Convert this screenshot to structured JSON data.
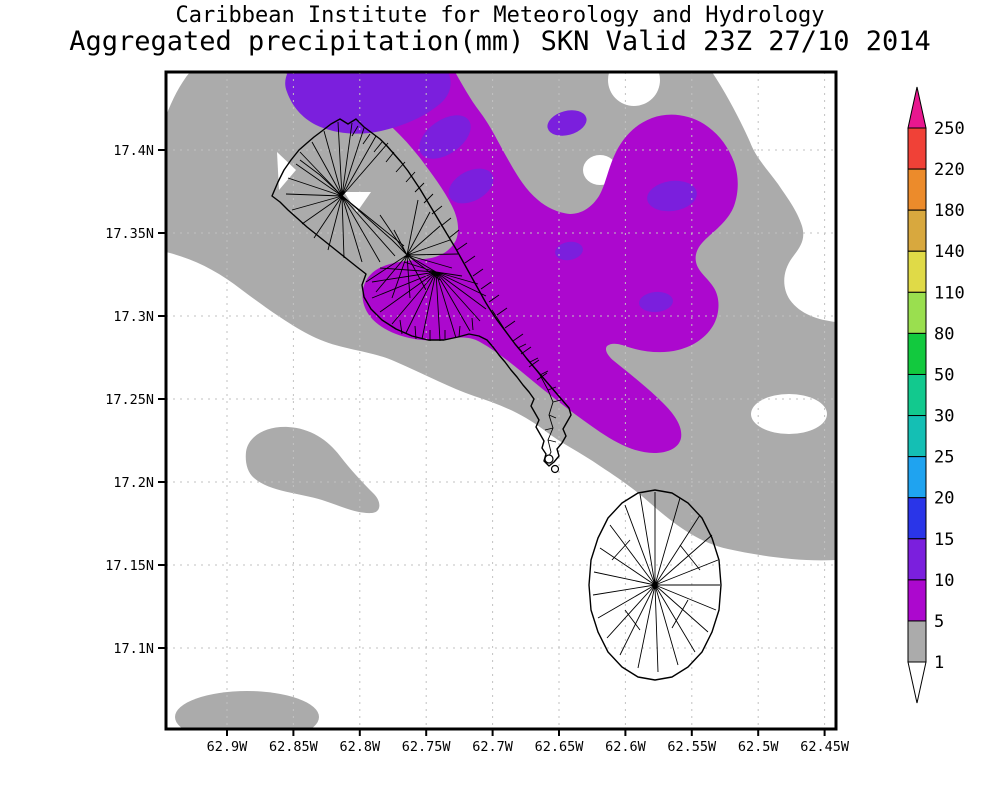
{
  "title": {
    "line1": "Caribbean Institute for Meteorology and Hydrology",
    "line2": "Aggregated precipitation(mm) SKN Valid 23Z 27/10 2014"
  },
  "axes": {
    "y_labels": [
      "17.4N",
      "17.35N",
      "17.3N",
      "17.25N",
      "17.2N",
      "17.15N",
      "17.1N"
    ],
    "x_labels": [
      "62.9W",
      "62.85W",
      "62.8W",
      "62.75W",
      "62.7W",
      "62.65W",
      "62.6W",
      "62.55W",
      "62.5W",
      "62.45W"
    ]
  },
  "colorbar": {
    "values_top_to_bottom": [
      "250",
      "220",
      "180",
      "140",
      "110",
      "80",
      "50",
      "30",
      "25",
      "20",
      "15",
      "10",
      "5",
      "1"
    ],
    "segment_colors_top_to_bottom": [
      "#F04137",
      "#EC8B2B",
      "#D8A83E",
      "#E0DA47",
      "#9ADF4F",
      "#12C93E",
      "#12C98E",
      "#14BFB4",
      "#1FA3F0",
      "#2A35E8",
      "#7B1FDD",
      "#AC08CE",
      "#ABABAB"
    ],
    "above_max_color": "#E8178F",
    "below_min_color": "#FFFFFF"
  },
  "palette": {
    "gray_1_5": "#ABABAB",
    "purple_5_10": "#AC08CE",
    "violet_10_15": "#7B1FDD",
    "background": "#FFFFFF"
  },
  "chart_data": {
    "type": "filled_contour_map",
    "variable": "Aggregated precipitation",
    "units": "mm",
    "region_label": "SKN",
    "valid_time": "23Z 27/10 2014",
    "source_text": "Caribbean Institute for Meteorology and Hydrology",
    "lon_ticks_deg_west": [
      62.9,
      62.85,
      62.8,
      62.75,
      62.7,
      62.65,
      62.6,
      62.55,
      62.5,
      62.45
    ],
    "lat_ticks_deg_north": [
      17.4,
      17.35,
      17.3,
      17.25,
      17.2,
      17.15,
      17.1
    ],
    "lon_range_deg_west": [
      62.945,
      62.44
    ],
    "lat_range_deg_north": [
      17.05,
      17.447
    ],
    "grid": "dotted graticule every 0.05 degree",
    "contour_levels_mm": [
      1,
      5,
      10,
      15,
      20,
      25,
      30,
      50,
      80,
      110,
      140,
      180,
      220,
      250
    ],
    "level_colors": [
      {
        "range_mm": "<1",
        "color": "#FFFFFF"
      },
      {
        "range_mm": "1-5",
        "color": "#ABABAB"
      },
      {
        "range_mm": "5-10",
        "color": "#AC08CE"
      },
      {
        "range_mm": "10-15",
        "color": "#7B1FDD"
      },
      {
        "range_mm": "15-20",
        "color": "#2A35E8"
      },
      {
        "range_mm": "20-25",
        "color": "#1FA3F0"
      },
      {
        "range_mm": "25-30",
        "color": "#14BFB4"
      },
      {
        "range_mm": "30-50",
        "color": "#12C98E"
      },
      {
        "range_mm": "50-80",
        "color": "#12C93E"
      },
      {
        "range_mm": "80-110",
        "color": "#9ADF4F"
      },
      {
        "range_mm": "110-140",
        "color": "#E0DA47"
      },
      {
        "range_mm": "140-180",
        "color": "#D8A83E"
      },
      {
        "range_mm": "180-220",
        "color": "#EC8B2B"
      },
      {
        "range_mm": "220-250",
        "color": "#F04137"
      },
      {
        "range_mm": ">250",
        "color": "#E8178F"
      }
    ],
    "shaded_features": [
      {
        "level_mm": "1-5",
        "color_name": "gray",
        "description": "broad diagonal band from the NW corner sweeping SE across the domain, reaching the east edge between 17.2N and 17.32N; detached kidney-shaped patch near 62.87W 17.23N and an oval patch on the bottom edge near 62.89W 17.06N; white (<1mm) holes near the NE corner, near 62.49W 17.24N, and near 62.6W 17.4N"
      },
      {
        "level_mm": "5-10",
        "color_name": "purple",
        "description": "band entering the top edge between 62.88W and 62.72W, crossing the northern island toward 62.6W 17.22N, merging with a large lobe covering roughly 62.65-62.52W, 17.28-17.42N"
      },
      {
        "level_mm": "10-15",
        "color_name": "violet",
        "description": "cores inside the purple band near 62.83W 17.44N, 62.75W 17.39N, 62.72W 17.37N, 62.56W 17.36N, 62.62W 17.33N and 62.56W 17.29N"
      }
    ],
    "map_overlays": "coastlines of two islands with dense interior drainage/watershed line networks; small islets off the SE peninsula of the northern island"
  }
}
